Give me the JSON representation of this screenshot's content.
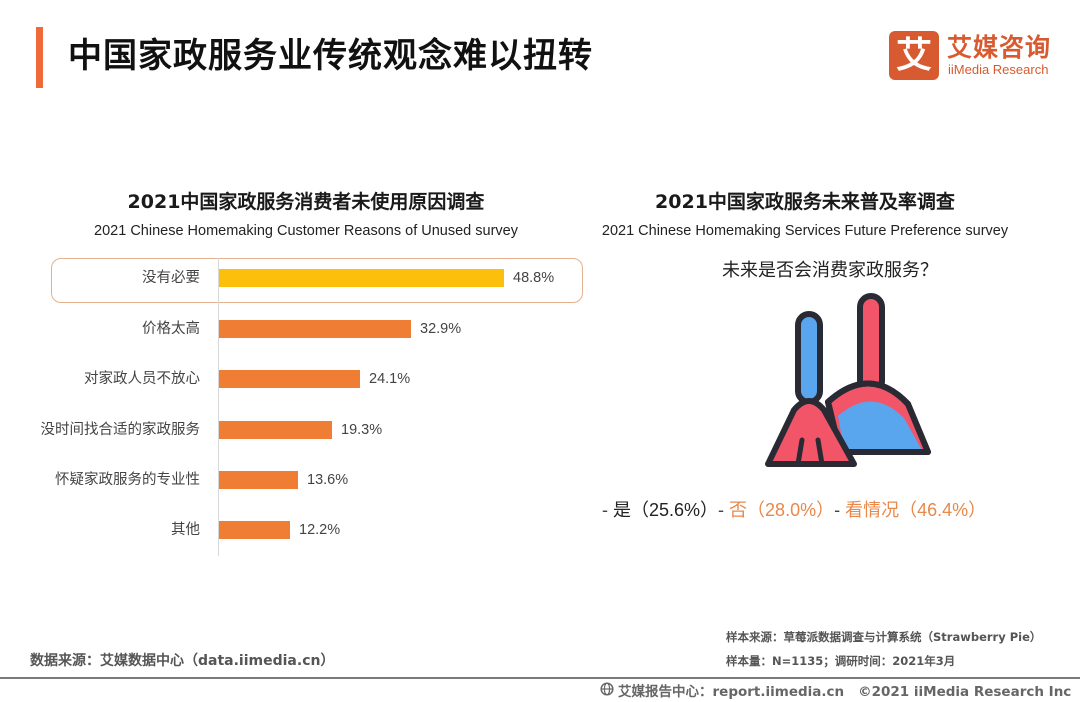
{
  "header": {
    "title": "中国家政服务业传统观念难以扭转",
    "accent_color": "#ee6a38",
    "logo": {
      "glyph": "艾",
      "name_cn": "艾媒咨询",
      "name_en": "iiMedia Research",
      "color": "#d85a30"
    }
  },
  "left_chart": {
    "title_cn": "2021中国家政服务消费者未使用原因调查",
    "title_en": "2021 Chinese Homemaking Customer Reasons of Unused survey"
  },
  "right_chart": {
    "title_cn": "2021中国家政服务未来普及率调查",
    "title_en": "2021 Chinese Homemaking Services Future Preference survey",
    "question": "未来是否会消费家政服务？",
    "icon": "broom-and-dustpan-icon",
    "answers": [
      {
        "dash": "- ",
        "label": "是（25.6%）"
      },
      {
        "dash": "- ",
        "label": "否（28.0%）"
      },
      {
        "dash": "- ",
        "label": "看情况（46.4%）"
      }
    ]
  },
  "chart_data": [
    {
      "type": "bar",
      "orientation": "horizontal",
      "title": "2021中国家政服务消费者未使用原因调查",
      "subtitle": "2021 Chinese Homemaking Customer Reasons of Unused survey",
      "categories": [
        "没有必要",
        "价格太高",
        "对家政人员不放心",
        "没时间找合适的家政服务",
        "怀疑家政服务的专业性",
        "其他"
      ],
      "values": [
        48.8,
        32.9,
        24.1,
        19.3,
        13.6,
        12.2
      ],
      "value_labels": [
        "48.8%",
        "32.9%",
        "24.1%",
        "19.3%",
        "13.6%",
        "12.2%"
      ],
      "colors": [
        "#fbbf0c",
        "#ef7d33",
        "#ef7d33",
        "#ef7d33",
        "#ef7d33",
        "#ef7d33"
      ],
      "highlighted_category": "没有必要",
      "xlabel": "",
      "ylabel": "",
      "unit": "%",
      "grid": false
    },
    {
      "type": "table",
      "title": "2021中国家政服务未来普及率调查",
      "subtitle": "2021 Chinese Homemaking Services Future Preference survey",
      "question": "未来是否会消费家政服务？",
      "categories": [
        "是",
        "否",
        "看情况"
      ],
      "values": [
        25.6,
        28.0,
        46.4
      ],
      "unit": "%"
    }
  ],
  "footer": {
    "data_source": "数据来源：艾媒数据中心（data.iimedia.cn）",
    "sample_source": "样本来源：草莓派数据调查与计算系统（Strawberry Pie）",
    "sample_size": "样本量：N=1135；调研时间：2021年3月",
    "report_center": "艾媒报告中心：report.iimedia.cn",
    "copyright": "©2021  iiMedia Research  Inc"
  }
}
